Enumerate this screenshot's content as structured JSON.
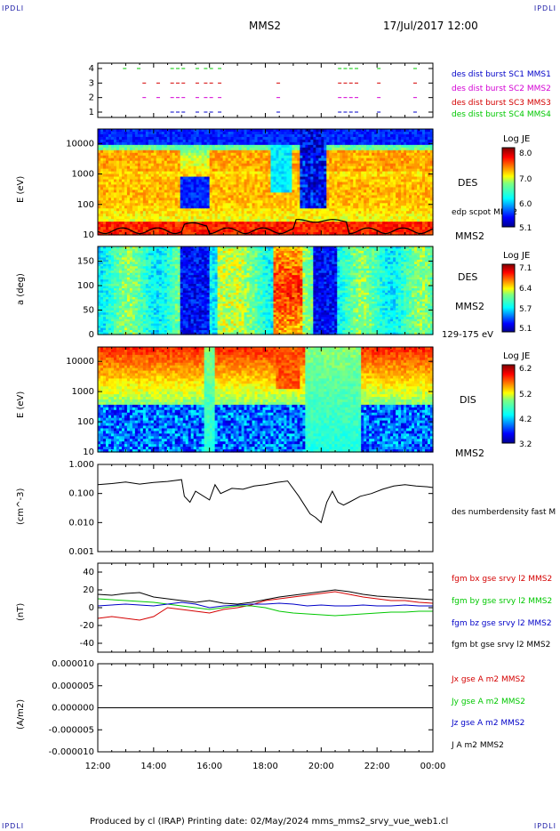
{
  "header": {
    "corner_left": "IPDLI",
    "corner_right": "IPDLI",
    "spacecraft": "MMS2",
    "datetime": "17/Jul/2017 12:00"
  },
  "footer": {
    "text": "Produced by cl (IRAP)   Printing date: 02/May/2024   mms_mms2_srvy_vue_web1.cl",
    "corner_left": "IPDLI",
    "corner_right": "IPDLI"
  },
  "colors": {
    "green": "#00c800",
    "magenta": "#d400d4",
    "red": "#d40000",
    "blue": "#0000c8",
    "black": "#000000"
  },
  "chart_data": [
    {
      "type": "scatter",
      "id": "burst",
      "yticks": [
        "1",
        "2",
        "3",
        "4"
      ],
      "legend": [
        {
          "text": "des dist burst SC1 MMS1",
          "color": "#0000c8"
        },
        {
          "text": "des dist burst SC2 MMS2",
          "color": "#d400d4"
        },
        {
          "text": "des dist burst SC3 MMS3",
          "color": "#d40000"
        },
        {
          "text": "des dist burst SC4 MMS4",
          "color": "#00c800"
        }
      ],
      "series": [
        {
          "sc": 4,
          "color": "#00c800",
          "x": [
            12.9,
            13.4,
            14.6,
            14.8,
            15.0,
            15.5,
            15.8,
            16.0,
            16.3,
            20.6,
            20.8,
            21.0,
            21.2,
            22.0,
            23.3
          ]
        },
        {
          "sc": 3,
          "color": "#d40000",
          "x": [
            13.6,
            14.1,
            14.6,
            14.8,
            15.0,
            15.5,
            15.8,
            16.0,
            16.3,
            18.4,
            20.6,
            20.8,
            21.0,
            21.2,
            22.0,
            23.3
          ]
        },
        {
          "sc": 2,
          "color": "#d400d4",
          "x": [
            13.6,
            14.1,
            14.6,
            14.8,
            15.0,
            15.5,
            15.8,
            16.0,
            16.3,
            18.4,
            20.6,
            20.8,
            21.0,
            21.2,
            22.0,
            23.3
          ]
        },
        {
          "sc": 1,
          "color": "#0000c8",
          "x": [
            14.6,
            14.8,
            15.0,
            15.5,
            15.8,
            16.0,
            16.3,
            18.4,
            20.6,
            20.8,
            21.0,
            21.2,
            22.0,
            23.3
          ]
        }
      ]
    },
    {
      "type": "heatmap",
      "id": "des_energy",
      "ylabel": "E (eV)",
      "yscale": "log",
      "ylim": [
        10,
        30000
      ],
      "yticks": [
        "10",
        "100",
        "1000",
        "10000"
      ],
      "right_labels": [
        "DES",
        "edp scpot MMS2",
        "MMS2"
      ],
      "colorbar": {
        "title": "Log JE",
        "ticks": [
          "8.0",
          "7.0",
          "6.0",
          "5.1"
        ],
        "range": [
          5.1,
          8.2
        ]
      }
    },
    {
      "type": "heatmap",
      "id": "des_pitch",
      "ylabel": "a (deg)",
      "ylim": [
        0,
        180
      ],
      "yticks": [
        "0",
        "50",
        "100",
        "150"
      ],
      "right_labels": [
        "DES",
        "MMS2",
        "129-175 eV"
      ],
      "colorbar": {
        "title": "Log JE",
        "ticks": [
          "7.1",
          "6.4",
          "5.7",
          "5.1"
        ],
        "range": [
          5.1,
          7.3
        ]
      }
    },
    {
      "type": "heatmap",
      "id": "dis_energy",
      "ylabel": "E (eV)",
      "yscale": "log",
      "ylim": [
        10,
        30000
      ],
      "yticks": [
        "10",
        "100",
        "1000",
        "10000"
      ],
      "right_labels": [
        "DIS",
        "MMS2"
      ],
      "colorbar": {
        "title": "Log JE",
        "ticks": [
          "6.2",
          "5.2",
          "4.2",
          "3.2"
        ],
        "range": [
          3.2,
          6.4
        ]
      }
    },
    {
      "type": "line",
      "id": "density",
      "ylabel": "(cm^-3)",
      "yscale": "log",
      "ylim": [
        0.001,
        1.0
      ],
      "yticks": [
        "0.001",
        "0.010",
        "0.100",
        "1.000"
      ],
      "legend": [
        {
          "text": "des numberdensity fast M",
          "color": "#000000"
        }
      ],
      "x": [
        12.0,
        12.5,
        13.0,
        13.5,
        14.0,
        14.5,
        15.0,
        15.1,
        15.3,
        15.5,
        16.0,
        16.2,
        16.4,
        16.8,
        17.2,
        17.6,
        18.0,
        18.4,
        18.8,
        19.2,
        19.4,
        19.6,
        19.8,
        20.0,
        20.2,
        20.4,
        20.6,
        20.8,
        21.0,
        21.4,
        21.8,
        22.2,
        22.6,
        23.0,
        23.4,
        23.8,
        24.0
      ],
      "y": [
        0.2,
        0.22,
        0.25,
        0.21,
        0.24,
        0.26,
        0.3,
        0.08,
        0.05,
        0.12,
        0.06,
        0.2,
        0.1,
        0.15,
        0.14,
        0.18,
        0.2,
        0.24,
        0.27,
        0.08,
        0.04,
        0.02,
        0.015,
        0.01,
        0.05,
        0.12,
        0.05,
        0.04,
        0.05,
        0.08,
        0.1,
        0.14,
        0.18,
        0.2,
        0.18,
        0.17,
        0.16
      ]
    },
    {
      "type": "line",
      "id": "fgm",
      "ylabel": "(nT)",
      "ylim": [
        -50,
        50
      ],
      "yticks": [
        "-40",
        "-20",
        "0",
        "20",
        "40"
      ],
      "legend": [
        {
          "text": "fgm bx gse srvy l2 MMS2",
          "color": "#d40000"
        },
        {
          "text": "fgm by gse srvy l2 MMS2",
          "color": "#00c800"
        },
        {
          "text": "fgm bz gse srvy l2 MMS2",
          "color": "#0000c8"
        },
        {
          "text": "fgm bt gse srvy l2 MMS2",
          "color": "#000000"
        }
      ],
      "x": [
        12.0,
        12.5,
        13.0,
        13.5,
        14.0,
        14.5,
        15.0,
        15.5,
        16.0,
        16.5,
        17.0,
        17.5,
        18.0,
        18.5,
        19.0,
        19.5,
        20.0,
        20.5,
        21.0,
        21.5,
        22.0,
        22.5,
        23.0,
        23.5,
        24.0
      ],
      "series": [
        {
          "name": "bx",
          "color": "#d40000",
          "values": [
            -12,
            -10,
            -12,
            -14,
            -10,
            0,
            -2,
            -4,
            -6,
            -2,
            0,
            3,
            8,
            10,
            12,
            14,
            16,
            18,
            15,
            12,
            10,
            8,
            8,
            6,
            5
          ]
        },
        {
          "name": "by",
          "color": "#00c800",
          "values": [
            10,
            9,
            8,
            7,
            6,
            4,
            2,
            0,
            -2,
            0,
            2,
            2,
            0,
            -4,
            -6,
            -7,
            -8,
            -9,
            -8,
            -7,
            -6,
            -5,
            -5,
            -4,
            -4
          ]
        },
        {
          "name": "bz",
          "color": "#0000c8",
          "values": [
            2,
            3,
            4,
            3,
            2,
            4,
            6,
            4,
            0,
            2,
            3,
            4,
            4,
            5,
            4,
            2,
            3,
            2,
            2,
            3,
            2,
            2,
            3,
            2,
            2
          ]
        },
        {
          "name": "bt",
          "color": "#000000",
          "values": [
            15,
            14,
            16,
            17,
            12,
            10,
            8,
            6,
            8,
            5,
            4,
            6,
            9,
            12,
            14,
            16,
            18,
            20,
            18,
            15,
            13,
            12,
            11,
            10,
            9
          ]
        }
      ]
    },
    {
      "type": "line",
      "id": "current",
      "ylabel": "(A/m2)",
      "ylim": [
        -1e-05,
        1e-05
      ],
      "yticks": [
        "-0.000010",
        "-0.000005",
        "0.000000",
        "0.000005",
        "0.000010"
      ],
      "legend": [
        {
          "text": "Jx gse A m2 MMS2",
          "color": "#d40000"
        },
        {
          "text": "Jy gse A m2 MMS2",
          "color": "#00c800"
        },
        {
          "text": "Jz gse A m2 MMS2",
          "color": "#0000c8"
        },
        {
          "text": "J A m2 MMS2",
          "color": "#000000"
        }
      ],
      "x": [
        12.0,
        24.0
      ],
      "values": [
        0,
        0
      ]
    }
  ],
  "xaxis": {
    "range": [
      12,
      24
    ],
    "ticks": [
      "12:00",
      "14:00",
      "16:00",
      "18:00",
      "20:00",
      "22:00",
      "00:00"
    ]
  }
}
